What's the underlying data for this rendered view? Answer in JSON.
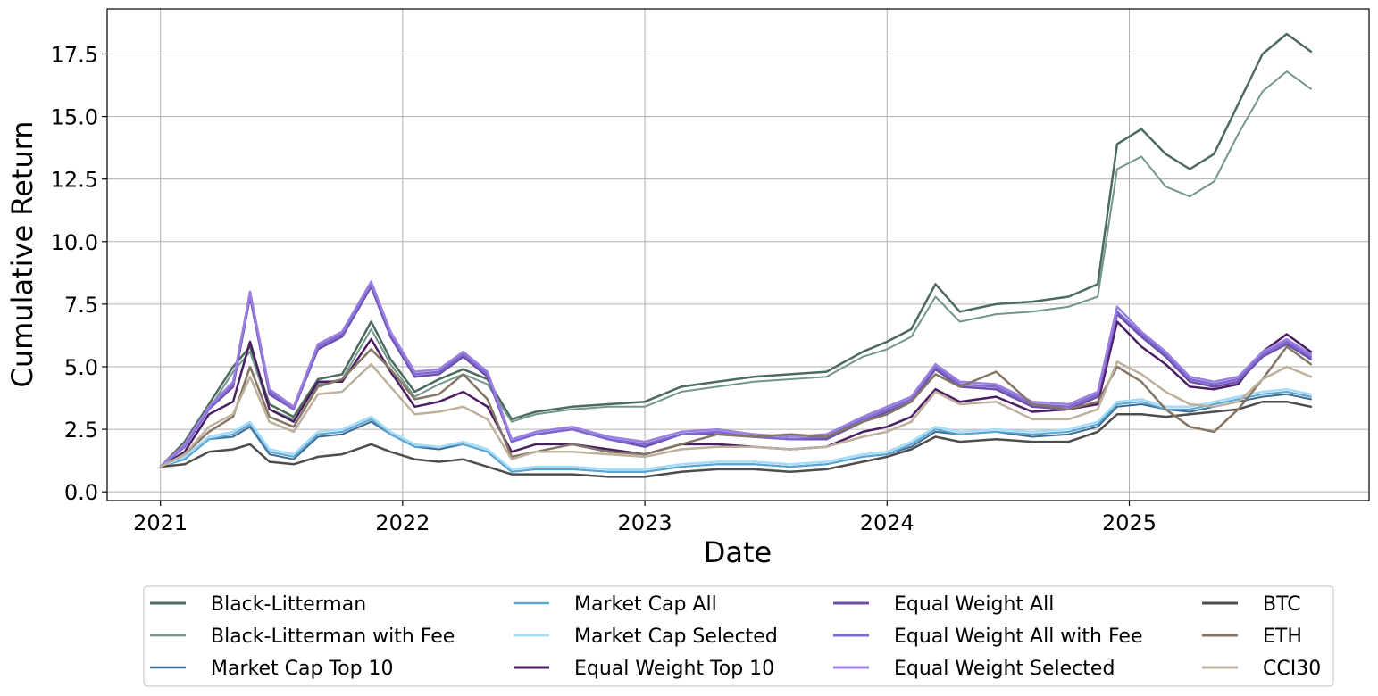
{
  "chart_data": {
    "type": "line",
    "xlabel": "Date",
    "ylabel": "Cumulative Return",
    "xlim": [
      2020.78,
      2025.99
    ],
    "ylim": [
      -0.35,
      19.3
    ],
    "x_ticks": [
      2021,
      2022,
      2023,
      2024,
      2025
    ],
    "x_tick_labels": [
      "2021",
      "2022",
      "2023",
      "2024",
      "2025"
    ],
    "y_ticks": [
      0,
      2.5,
      5,
      7.5,
      10,
      12.5,
      15,
      17.5
    ],
    "y_tick_labels": [
      "0.0",
      "2.5",
      "5.0",
      "7.5",
      "10.0",
      "12.5",
      "15.0",
      "17.5"
    ],
    "grid": true,
    "legend_position": "below plot, 4 columns",
    "x": [
      2021.0,
      2021.1,
      2021.2,
      2021.3,
      2021.37,
      2021.45,
      2021.55,
      2021.65,
      2021.75,
      2021.87,
      2021.95,
      2022.05,
      2022.15,
      2022.25,
      2022.35,
      2022.45,
      2022.55,
      2022.7,
      2022.85,
      2023.0,
      2023.15,
      2023.3,
      2023.45,
      2023.6,
      2023.75,
      2023.9,
      2024.0,
      2024.1,
      2024.2,
      2024.3,
      2024.45,
      2024.6,
      2024.75,
      2024.87,
      2024.95,
      2025.05,
      2025.15,
      2025.25,
      2025.35,
      2025.45,
      2025.55,
      2025.65,
      2025.75
    ],
    "series": [
      {
        "name": "Black-Litterman",
        "color": "#4d6b5c",
        "width": 2.5,
        "values": [
          1.0,
          2.0,
          3.5,
          5.0,
          5.8,
          3.5,
          3.0,
          4.5,
          4.7,
          6.8,
          5.3,
          4.0,
          4.5,
          4.9,
          4.5,
          2.9,
          3.2,
          3.4,
          3.5,
          3.6,
          4.2,
          4.4,
          4.6,
          4.7,
          4.8,
          5.6,
          6.0,
          6.5,
          8.3,
          7.2,
          7.5,
          7.6,
          7.8,
          8.3,
          13.9,
          14.5,
          13.5,
          12.9,
          13.5,
          15.5,
          17.5,
          18.3,
          17.6
        ]
      },
      {
        "name": "Black-Litterman with Fee",
        "color": "#73968a",
        "width": 2,
        "values": [
          1.0,
          1.9,
          3.3,
          4.8,
          5.6,
          3.3,
          2.9,
          4.3,
          4.5,
          6.5,
          5.1,
          3.8,
          4.3,
          4.7,
          4.3,
          2.8,
          3.1,
          3.3,
          3.4,
          3.4,
          4.0,
          4.2,
          4.4,
          4.5,
          4.6,
          5.4,
          5.7,
          6.2,
          7.8,
          6.8,
          7.1,
          7.2,
          7.4,
          7.8,
          12.9,
          13.4,
          12.2,
          11.8,
          12.4,
          14.3,
          16.0,
          16.8,
          16.1
        ]
      },
      {
        "name": "Market Cap Top 10",
        "color": "#3e6a8e",
        "width": 2,
        "values": [
          1.0,
          1.3,
          2.1,
          2.2,
          2.6,
          1.5,
          1.3,
          2.2,
          2.3,
          2.8,
          2.3,
          1.8,
          1.7,
          1.9,
          1.6,
          0.8,
          0.9,
          0.9,
          0.8,
          0.8,
          1.0,
          1.1,
          1.1,
          1.0,
          1.1,
          1.4,
          1.5,
          1.8,
          2.4,
          2.3,
          2.4,
          2.2,
          2.3,
          2.6,
          3.4,
          3.5,
          3.3,
          3.2,
          3.4,
          3.6,
          3.8,
          3.9,
          3.7
        ]
      },
      {
        "name": "Market Cap All",
        "color": "#5aa5d6",
        "width": 2,
        "values": [
          1.0,
          1.3,
          2.1,
          2.3,
          2.7,
          1.6,
          1.4,
          2.3,
          2.4,
          2.9,
          2.3,
          1.8,
          1.8,
          1.9,
          1.6,
          0.8,
          0.9,
          0.9,
          0.8,
          0.8,
          1.0,
          1.1,
          1.1,
          1.0,
          1.1,
          1.4,
          1.5,
          1.9,
          2.5,
          2.3,
          2.4,
          2.3,
          2.4,
          2.7,
          3.5,
          3.6,
          3.3,
          3.3,
          3.5,
          3.7,
          3.9,
          4.0,
          3.8
        ]
      },
      {
        "name": "Market Cap Selected",
        "color": "#a6dcf7",
        "width": 2.5,
        "values": [
          1.0,
          1.4,
          2.2,
          2.4,
          2.8,
          1.7,
          1.5,
          2.4,
          2.5,
          3.0,
          2.4,
          1.9,
          1.8,
          2.0,
          1.7,
          0.9,
          1.0,
          1.0,
          0.9,
          0.9,
          1.1,
          1.2,
          1.2,
          1.1,
          1.2,
          1.5,
          1.6,
          2.0,
          2.6,
          2.4,
          2.5,
          2.4,
          2.5,
          2.8,
          3.6,
          3.7,
          3.4,
          3.4,
          3.6,
          3.8,
          4.0,
          4.1,
          3.9
        ]
      },
      {
        "name": "Equal Weight Top 10",
        "color": "#4b1d63",
        "width": 2.5,
        "values": [
          1.0,
          1.6,
          3.1,
          3.6,
          6.0,
          3.3,
          2.8,
          4.4,
          4.4,
          6.1,
          4.8,
          3.4,
          3.6,
          4.0,
          3.4,
          1.6,
          1.9,
          1.9,
          1.7,
          1.5,
          1.9,
          1.9,
          1.8,
          1.7,
          1.8,
          2.4,
          2.6,
          3.0,
          4.1,
          3.6,
          3.8,
          3.2,
          3.3,
          3.5,
          6.8,
          5.8,
          5.1,
          4.2,
          4.1,
          4.3,
          5.6,
          6.3,
          5.6
        ]
      },
      {
        "name": "Equal Weight All",
        "color": "#6b4fa8",
        "width": 2.5,
        "values": [
          1.0,
          1.8,
          3.3,
          4.2,
          7.8,
          3.9,
          3.3,
          5.7,
          6.2,
          8.2,
          6.2,
          4.6,
          4.7,
          5.4,
          4.6,
          2.0,
          2.3,
          2.5,
          2.1,
          1.8,
          2.3,
          2.3,
          2.2,
          2.1,
          2.1,
          2.8,
          3.2,
          3.6,
          4.9,
          4.2,
          4.1,
          3.4,
          3.3,
          3.8,
          7.1,
          6.2,
          5.4,
          4.4,
          4.2,
          4.4,
          5.4,
          5.9,
          5.3
        ]
      },
      {
        "name": "Equal Weight All with Fee",
        "color": "#7f67d1",
        "width": 2.5,
        "values": [
          1.0,
          1.8,
          3.3,
          4.3,
          7.9,
          4.0,
          3.3,
          5.8,
          6.3,
          8.3,
          6.3,
          4.7,
          4.8,
          5.5,
          4.7,
          2.0,
          2.3,
          2.5,
          2.1,
          1.9,
          2.3,
          2.4,
          2.2,
          2.1,
          2.2,
          2.9,
          3.3,
          3.7,
          5.0,
          4.3,
          4.2,
          3.5,
          3.4,
          3.9,
          7.2,
          6.3,
          5.5,
          4.5,
          4.3,
          4.5,
          5.5,
          6.0,
          5.4
        ]
      },
      {
        "name": "Equal Weight Selected",
        "color": "#9a80e0",
        "width": 2.5,
        "values": [
          1.0,
          1.9,
          3.4,
          4.4,
          8.0,
          4.1,
          3.4,
          5.9,
          6.4,
          8.4,
          6.4,
          4.8,
          4.9,
          5.6,
          4.8,
          2.1,
          2.4,
          2.6,
          2.2,
          2.0,
          2.4,
          2.5,
          2.3,
          2.2,
          2.3,
          3.0,
          3.4,
          3.8,
          5.1,
          4.4,
          4.3,
          3.6,
          3.5,
          4.0,
          7.4,
          6.4,
          5.6,
          4.6,
          4.4,
          4.6,
          5.6,
          6.1,
          5.5
        ]
      },
      {
        "name": "BTC",
        "color": "#4d4d4d",
        "width": 2.5,
        "values": [
          1.0,
          1.1,
          1.6,
          1.7,
          1.9,
          1.2,
          1.1,
          1.4,
          1.5,
          1.9,
          1.6,
          1.3,
          1.2,
          1.3,
          1.0,
          0.7,
          0.7,
          0.7,
          0.6,
          0.6,
          0.8,
          0.9,
          0.9,
          0.8,
          0.9,
          1.2,
          1.4,
          1.7,
          2.2,
          2.0,
          2.1,
          2.0,
          2.0,
          2.4,
          3.1,
          3.1,
          3.0,
          3.1,
          3.2,
          3.3,
          3.6,
          3.6,
          3.4
        ]
      },
      {
        "name": "ETH",
        "color": "#857565",
        "width": 2.5,
        "values": [
          1.0,
          1.5,
          2.4,
          3.0,
          5.0,
          3.0,
          2.6,
          4.2,
          4.5,
          5.7,
          4.9,
          3.7,
          3.9,
          4.7,
          3.7,
          1.4,
          1.6,
          1.9,
          1.6,
          1.5,
          1.9,
          2.3,
          2.2,
          2.3,
          2.2,
          2.8,
          3.1,
          3.6,
          4.7,
          4.2,
          4.8,
          3.5,
          3.3,
          3.6,
          5.0,
          4.4,
          3.3,
          2.6,
          2.4,
          3.3,
          4.5,
          5.8,
          5.1
        ]
      },
      {
        "name": "CCI30",
        "color": "#bfb09d",
        "width": 2.5,
        "values": [
          1.0,
          1.5,
          2.6,
          3.1,
          4.6,
          2.8,
          2.4,
          3.9,
          4.0,
          5.1,
          4.2,
          3.1,
          3.2,
          3.4,
          2.9,
          1.3,
          1.6,
          1.6,
          1.5,
          1.4,
          1.7,
          1.8,
          1.8,
          1.7,
          1.8,
          2.2,
          2.4,
          2.8,
          4.0,
          3.5,
          3.6,
          2.9,
          2.9,
          3.3,
          5.2,
          4.7,
          4.0,
          3.5,
          3.4,
          3.6,
          4.5,
          5.0,
          4.6
        ]
      }
    ]
  }
}
